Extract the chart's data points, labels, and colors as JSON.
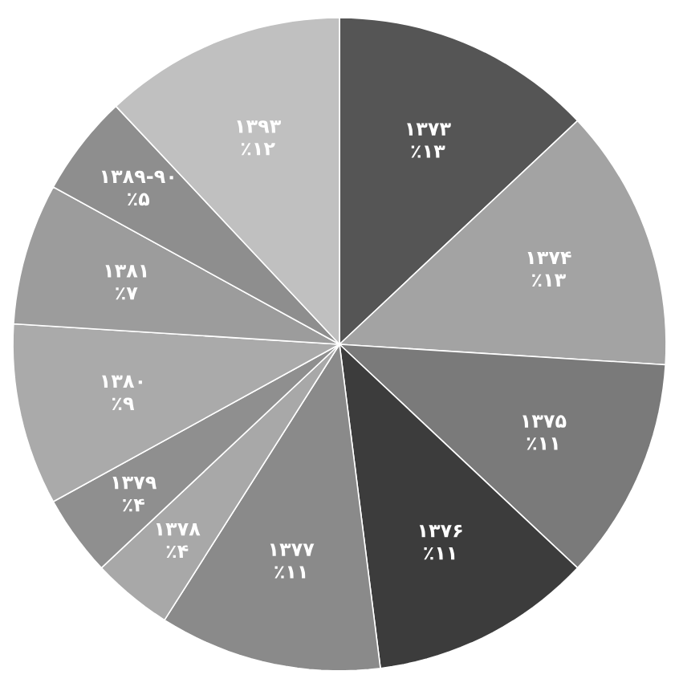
{
  "chart_data": {
    "type": "pie",
    "categories": [
      "۱۳۷۳",
      "۱۳۷۴",
      "۱۳۷۵",
      "۱۳۷۶",
      "۱۳۷۷",
      "۱۳۷۸",
      "۱۳۷۹",
      "۱۳۸۰",
      "۱۳۸۱",
      "۱۳۸۹-۹۰",
      "۱۳۹۳"
    ],
    "values": [
      13,
      13,
      11,
      11,
      11,
      4,
      4,
      9,
      7,
      5,
      12
    ],
    "value_labels": [
      "٪۱۳",
      "٪۱۳",
      "٪۱۱",
      "٪۱۱",
      "٪۱۱",
      "٪۴",
      "٪۴",
      "٪۹",
      "٪۷",
      "٪۵",
      "٪۱۲"
    ],
    "colors": [
      "#555555",
      "#a3a3a3",
      "#7a7a7a",
      "#3c3c3c",
      "#8a8a8a",
      "#a8a8a8",
      "#8f8f8f",
      "#aaaaaa",
      "#9c9c9c",
      "#8e8e8e",
      "#c0c0c0"
    ]
  }
}
